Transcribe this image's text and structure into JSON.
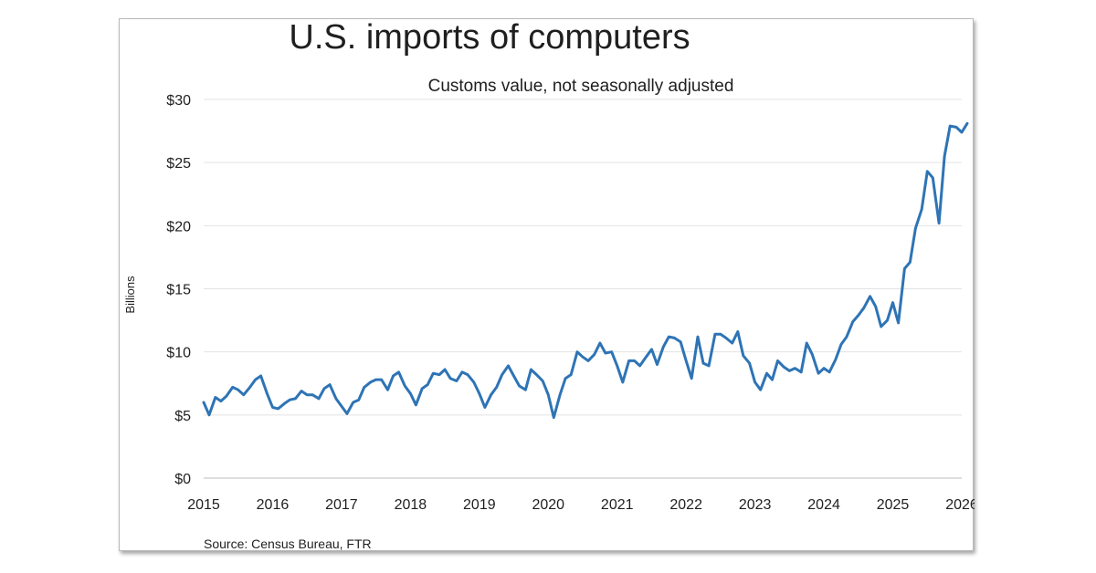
{
  "chart_data": {
    "type": "line",
    "title": "U.S. imports of computers",
    "subtitle": "Customs value, not seasonally adjusted",
    "ylabel": "Billions",
    "source": "Source: Census Bureau, FTR",
    "ylim": [
      0,
      30
    ],
    "xlim": [
      2015,
      2026
    ],
    "yticks": [
      0,
      5,
      10,
      15,
      20,
      25,
      30
    ],
    "ytick_labels": [
      "$0",
      "$5",
      "$10",
      "$15",
      "$20",
      "$25",
      "$30"
    ],
    "xticks": [
      2015,
      2016,
      2017,
      2018,
      2019,
      2020,
      2021,
      2022,
      2023,
      2024,
      2025,
      2026
    ],
    "xtick_labels": [
      "2015",
      "2016",
      "2017",
      "2018",
      "2019",
      "2020",
      "2021",
      "2022",
      "2023",
      "2024",
      "2025",
      "2026"
    ],
    "grid": true,
    "line_color": "#2e74b5",
    "series": [
      {
        "x": [
          2015.0,
          2015.08,
          2015.17,
          2015.25,
          2015.33,
          2015.42,
          2015.5,
          2015.58,
          2015.67,
          2015.75,
          2015.83,
          2015.92,
          2016.0,
          2016.08,
          2016.17,
          2016.25,
          2016.33,
          2016.42,
          2016.5,
          2016.58,
          2016.67,
          2016.75,
          2016.83,
          2016.92,
          2017.0,
          2017.08,
          2017.17,
          2017.25,
          2017.33,
          2017.42,
          2017.5,
          2017.58,
          2017.67,
          2017.75,
          2017.83,
          2017.92,
          2018.0,
          2018.08,
          2018.17,
          2018.25,
          2018.33,
          2018.42,
          2018.5,
          2018.58,
          2018.67,
          2018.75,
          2018.83,
          2018.92,
          2019.0,
          2019.08,
          2019.17,
          2019.25,
          2019.33,
          2019.42,
          2019.5,
          2019.58,
          2019.67,
          2019.75,
          2019.83,
          2019.92,
          2020.0,
          2020.08,
          2020.17,
          2020.25,
          2020.33,
          2020.42,
          2020.5,
          2020.58,
          2020.67,
          2020.75,
          2020.83,
          2020.92,
          2021.0,
          2021.08,
          2021.17,
          2021.25,
          2021.33,
          2021.42,
          2021.5,
          2021.58,
          2021.67,
          2021.75,
          2021.83,
          2021.92,
          2022.0,
          2022.08,
          2022.17,
          2022.25,
          2022.33,
          2022.42,
          2022.5,
          2022.58,
          2022.67,
          2022.75,
          2022.83,
          2022.92,
          2023.0,
          2023.08,
          2023.17,
          2023.25,
          2023.33,
          2023.42,
          2023.5,
          2023.58,
          2023.67,
          2023.75,
          2023.83,
          2023.92,
          2024.0,
          2024.08,
          2024.17,
          2024.25,
          2024.33,
          2024.42,
          2024.5,
          2024.58,
          2024.67,
          2024.75,
          2024.83,
          2024.92,
          2025.0,
          2025.08,
          2025.17,
          2025.25,
          2025.33,
          2025.42,
          2025.5,
          2025.58,
          2025.67,
          2025.75,
          2025.83,
          2025.92,
          2026.0,
          2026.08
        ],
        "values": [
          6.0,
          5.0,
          6.4,
          6.1,
          6.5,
          7.2,
          7.0,
          6.6,
          7.2,
          7.8,
          8.1,
          6.7,
          5.6,
          5.5,
          5.9,
          6.2,
          6.3,
          6.9,
          6.6,
          6.6,
          6.3,
          7.1,
          7.4,
          6.3,
          5.7,
          5.1,
          6.0,
          6.2,
          7.2,
          7.6,
          7.8,
          7.8,
          7.0,
          8.1,
          8.4,
          7.3,
          6.7,
          5.8,
          7.1,
          7.4,
          8.3,
          8.2,
          8.6,
          7.9,
          7.7,
          8.4,
          8.2,
          7.6,
          6.7,
          5.6,
          6.6,
          7.2,
          8.2,
          8.9,
          8.1,
          7.3,
          7.0,
          8.6,
          8.2,
          7.7,
          6.6,
          4.8,
          6.6,
          7.9,
          8.2,
          10.0,
          9.6,
          9.3,
          9.8,
          10.7,
          9.9,
          10.0,
          8.9,
          7.6,
          9.3,
          9.3,
          8.9,
          9.6,
          10.2,
          9.0,
          10.4,
          11.2,
          11.1,
          10.8,
          9.3,
          7.9,
          11.2,
          9.1,
          8.9,
          11.4,
          11.4,
          11.1,
          10.7,
          11.6,
          9.7,
          9.1,
          7.6,
          7.0,
          8.3,
          7.8,
          9.3,
          8.8,
          8.5,
          8.7,
          8.4,
          10.7,
          9.8,
          8.3,
          8.7,
          8.4,
          9.4,
          10.6,
          11.2,
          12.4,
          12.9,
          13.5,
          14.4,
          13.6,
          12.0,
          12.5,
          13.9,
          12.3,
          16.6,
          17.1,
          19.8,
          21.3,
          24.3,
          23.8,
          20.2,
          25.5,
          27.9,
          27.8,
          27.4,
          28.1
        ]
      }
    ]
  }
}
